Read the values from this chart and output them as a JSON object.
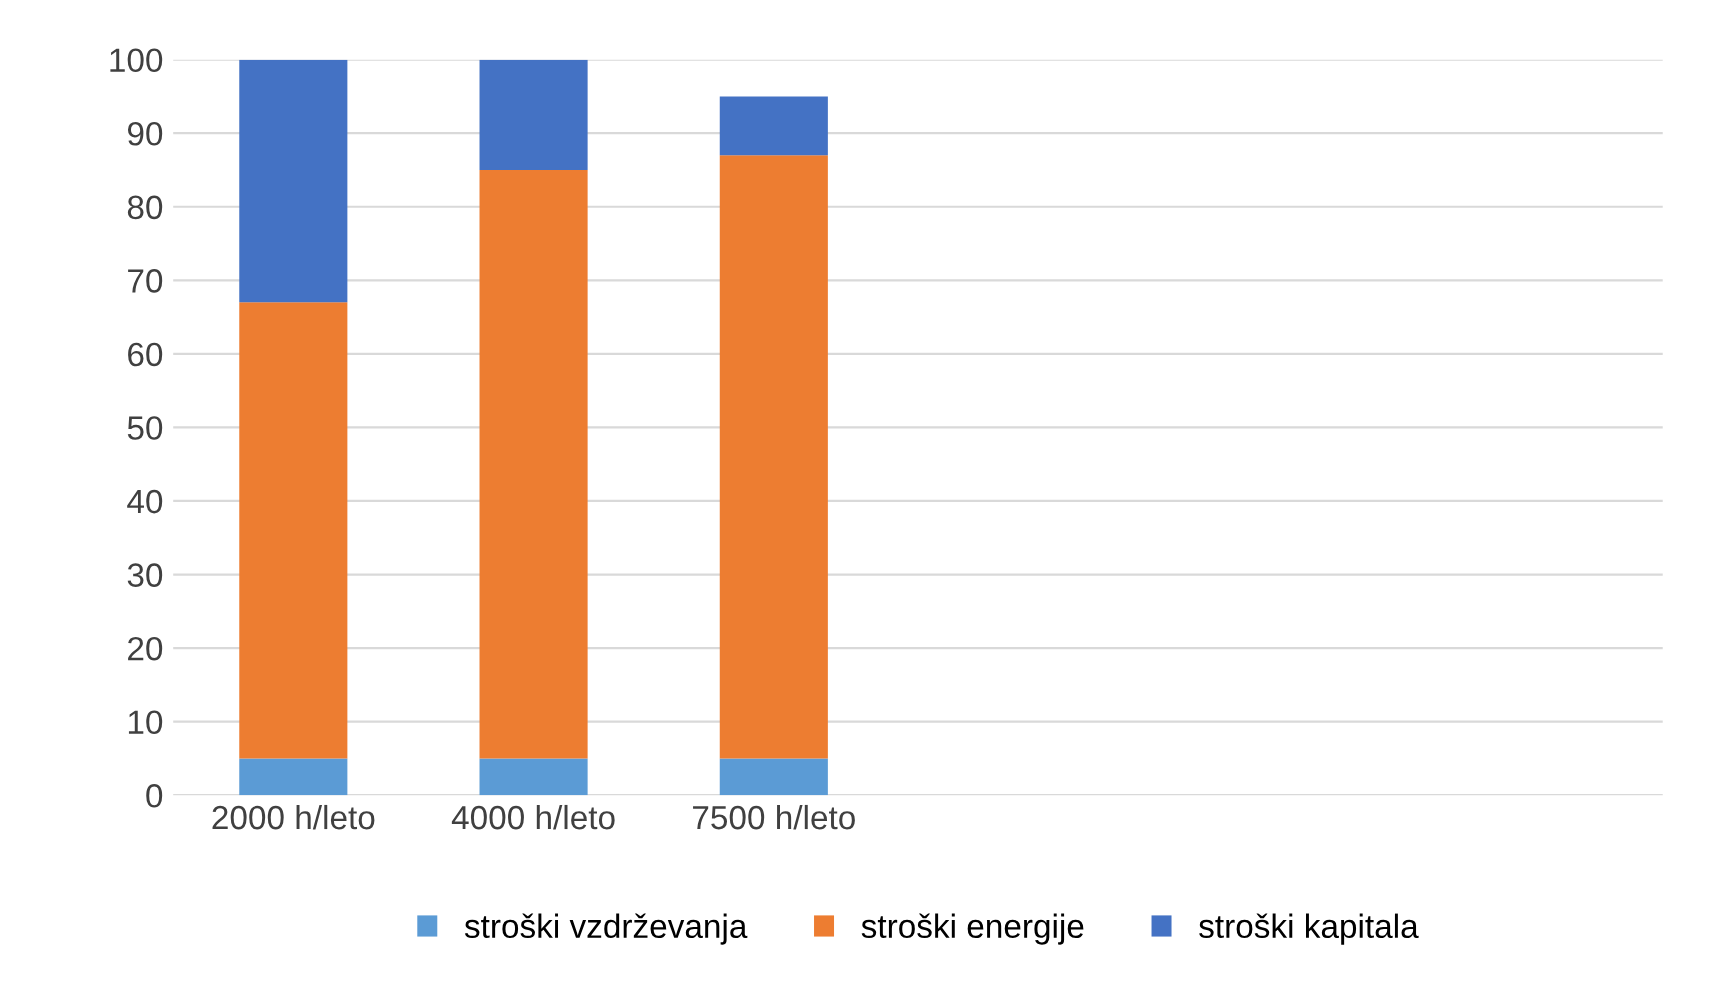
{
  "chart_data": {
    "type": "bar",
    "stacked": true,
    "categories": [
      "2000 h/leto",
      "4000 h/leto",
      "7500 h/leto"
    ],
    "series": [
      {
        "name": "stroški vzdrževanja",
        "color": "#5b9bd5",
        "values": [
          5,
          5,
          5
        ]
      },
      {
        "name": "stroški energije",
        "color": "#ed7d31",
        "values": [
          62,
          80,
          82
        ]
      },
      {
        "name": "stroški kapitala",
        "color": "#4472c4",
        "values": [
          33,
          15,
          8
        ]
      }
    ],
    "ylim": [
      0,
      100
    ],
    "yticks": [
      0,
      10,
      20,
      30,
      40,
      50,
      60,
      70,
      80,
      90,
      100
    ],
    "grid": "y",
    "legend": "bottom"
  }
}
